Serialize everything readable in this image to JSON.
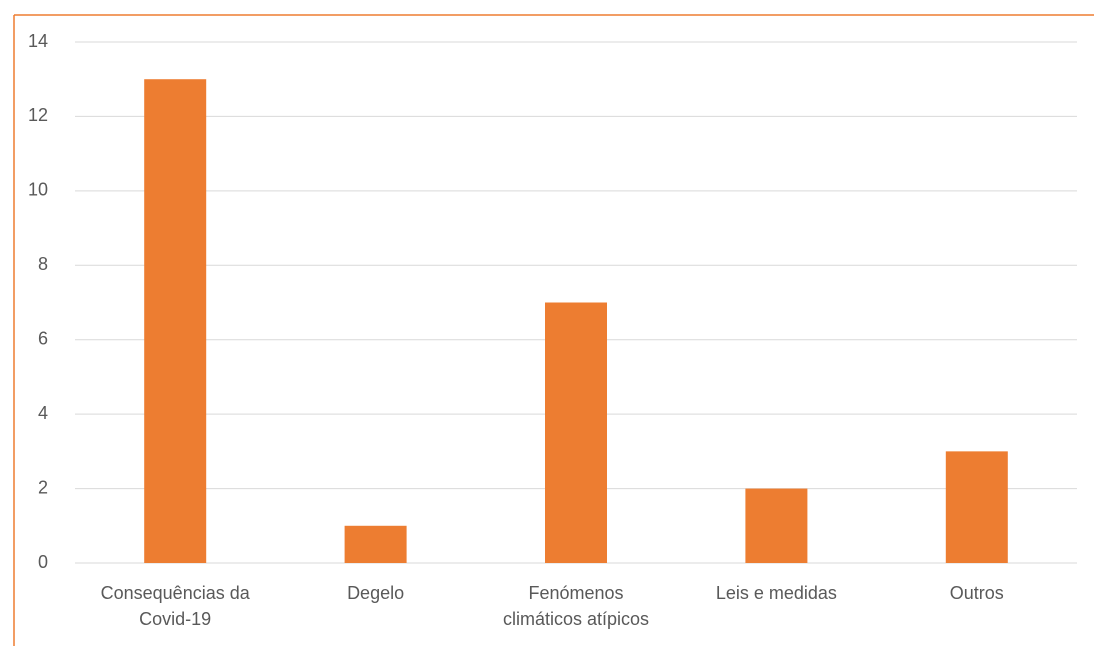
{
  "chart_data": {
    "type": "bar",
    "categories": [
      "Consequências da Covid-19",
      "Degelo",
      "Fenómenos climáticos atípicos",
      "Leis e medidas",
      "Outros"
    ],
    "values": [
      13,
      1,
      7,
      2,
      3
    ],
    "color": "#ed7d31",
    "ylim": [
      0,
      14
    ],
    "yticks": [
      0,
      2,
      4,
      6,
      8,
      10,
      12,
      14
    ],
    "grid": true
  }
}
